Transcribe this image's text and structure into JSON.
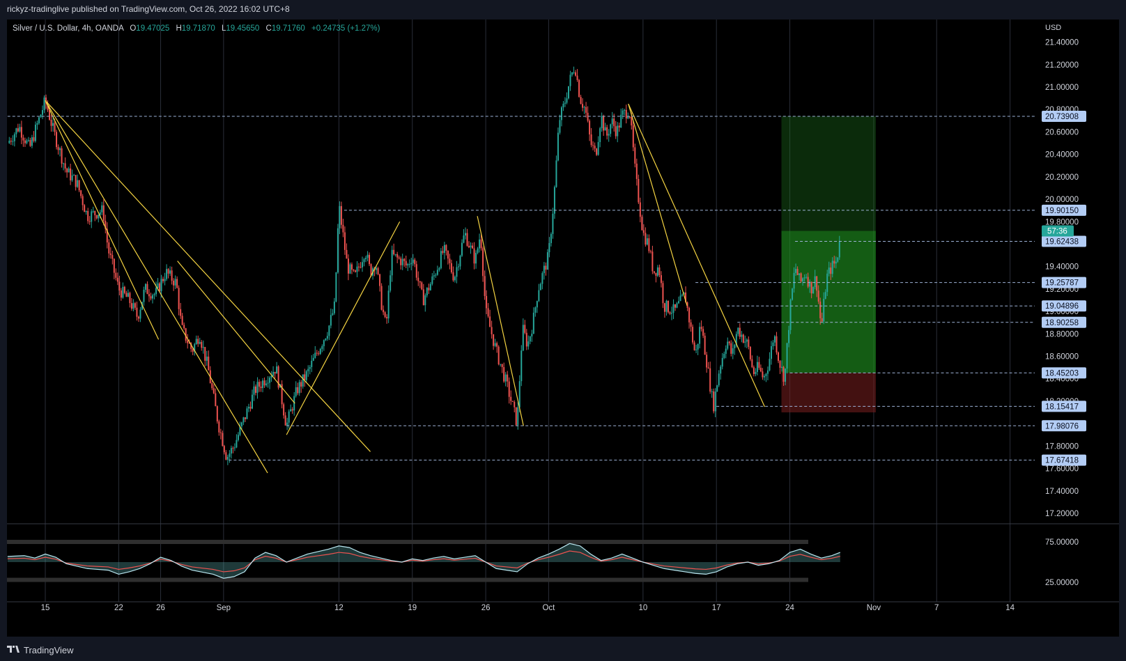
{
  "header": {
    "text": "rickyz-tradinglive published on TradingView.com, Oct 26, 2022 16:02 UTC+8"
  },
  "legend": {
    "symbol": "Silver / U.S. Dollar, 4h, OANDA",
    "o_label": "O",
    "o": "19.47025",
    "h_label": "H",
    "h": "19.71870",
    "l_label": "L",
    "l": "19.45650",
    "c_label": "C",
    "c": "19.71760",
    "change": "+0.24735 (+1.27%)"
  },
  "footer": {
    "logo_text": "TradingView"
  },
  "colors": {
    "background": "#000000",
    "frame": "#131722",
    "up": "#26a69a",
    "down": "#ef5350",
    "trendline": "#f5d442",
    "level": "#9db2d6",
    "label_bg": "#b3cdf5",
    "badge": "#26a69a"
  },
  "chart_data": {
    "type": "candlestick",
    "currency_label": "USD",
    "ylim": [
      17.15,
      21.6
    ],
    "y_ticks": [
      "17.20000",
      "17.40000",
      "17.60000",
      "17.80000",
      "18.00000",
      "18.20000",
      "18.40000",
      "18.60000",
      "18.80000",
      "19.00000",
      "19.20000",
      "19.40000",
      "19.60000",
      "19.80000",
      "20.00000",
      "20.20000",
      "20.40000",
      "20.60000",
      "20.80000",
      "21.00000",
      "21.20000",
      "21.40000"
    ],
    "x_ticks": [
      {
        "label": "15",
        "day": 0
      },
      {
        "label": "22",
        "day": 7
      },
      {
        "label": "26",
        "day": 11
      },
      {
        "label": "Sep",
        "day": 17
      },
      {
        "label": "12",
        "day": 28
      },
      {
        "label": "19",
        "day": 35
      },
      {
        "label": "26",
        "day": 42
      },
      {
        "label": "Oct",
        "day": 48
      },
      {
        "label": "10",
        "day": 57
      },
      {
        "label": "17",
        "day": 64
      },
      {
        "label": "24",
        "day": 71
      },
      {
        "label": "Nov",
        "day": 79
      },
      {
        "label": "7",
        "day": 85
      },
      {
        "label": "14",
        "day": 92
      }
    ],
    "price_path": [
      [
        -3.6,
        20.5
      ],
      [
        -2.5,
        20.65
      ],
      [
        -1.5,
        20.45
      ],
      [
        -1,
        20.6
      ],
      [
        0,
        20.88
      ],
      [
        0.8,
        20.6
      ],
      [
        2,
        20.25
      ],
      [
        3,
        20.15
      ],
      [
        4,
        19.85
      ],
      [
        5.5,
        19.9
      ],
      [
        6,
        19.55
      ],
      [
        7,
        19.2
      ],
      [
        8,
        19.1
      ],
      [
        8.8,
        18.95
      ],
      [
        9.5,
        19.2
      ],
      [
        10.5,
        19.15
      ],
      [
        11.5,
        19.35
      ],
      [
        12.5,
        19.25
      ],
      [
        13,
        18.85
      ],
      [
        14,
        18.65
      ],
      [
        14.7,
        18.8
      ],
      [
        15.5,
        18.5
      ],
      [
        16.5,
        18.0
      ],
      [
        17.3,
        17.7
      ],
      [
        18,
        17.8
      ],
      [
        19,
        18.05
      ],
      [
        20,
        18.3
      ],
      [
        21,
        18.4
      ],
      [
        22,
        18.5
      ],
      [
        23,
        17.98
      ],
      [
        24,
        18.3
      ],
      [
        25,
        18.45
      ],
      [
        26,
        18.65
      ],
      [
        27,
        18.85
      ],
      [
        27.6,
        19.05
      ],
      [
        28,
        19.95
      ],
      [
        28.8,
        19.4
      ],
      [
        29.5,
        19.3
      ],
      [
        30.5,
        19.55
      ],
      [
        31,
        19.35
      ],
      [
        31.5,
        19.45
      ],
      [
        32,
        19.1
      ],
      [
        32.5,
        18.85
      ],
      [
        33,
        19.5
      ],
      [
        34,
        19.45
      ],
      [
        34.5,
        19.4
      ],
      [
        35,
        19.5
      ],
      [
        36,
        19.1
      ],
      [
        37,
        19.3
      ],
      [
        38,
        19.55
      ],
      [
        39,
        19.3
      ],
      [
        40,
        19.7
      ],
      [
        41,
        19.45
      ],
      [
        41.5,
        19.7
      ],
      [
        42,
        19.0
      ],
      [
        43,
        18.65
      ],
      [
        44,
        18.35
      ],
      [
        45,
        18.0
      ],
      [
        45.5,
        18.85
      ],
      [
        46,
        18.7
      ],
      [
        46.5,
        18.9
      ],
      [
        47,
        19.2
      ],
      [
        48,
        19.5
      ],
      [
        48.5,
        20.0
      ],
      [
        49,
        20.7
      ],
      [
        49.5,
        20.85
      ],
      [
        50,
        21.05
      ],
      [
        50.5,
        21.2
      ],
      [
        51,
        20.9
      ],
      [
        51.5,
        20.8
      ],
      [
        52,
        20.5
      ],
      [
        52.5,
        20.4
      ],
      [
        53,
        20.75
      ],
      [
        53.5,
        20.55
      ],
      [
        54,
        20.7
      ],
      [
        54.5,
        20.6
      ],
      [
        55,
        20.75
      ],
      [
        55.7,
        20.8
      ],
      [
        56.3,
        20.2
      ],
      [
        57,
        19.7
      ],
      [
        57.5,
        19.6
      ],
      [
        58,
        19.35
      ],
      [
        58.5,
        19.4
      ],
      [
        59,
        19.05
      ],
      [
        60,
        19.0
      ],
      [
        61,
        19.15
      ],
      [
        62,
        18.6
      ],
      [
        62.5,
        18.9
      ],
      [
        63,
        18.6
      ],
      [
        63.7,
        18.15
      ],
      [
        64.3,
        18.5
      ],
      [
        65,
        18.75
      ],
      [
        65.5,
        18.6
      ],
      [
        66,
        18.85
      ],
      [
        67,
        18.7
      ],
      [
        67.5,
        18.45
      ],
      [
        68,
        18.5
      ],
      [
        68.5,
        18.4
      ],
      [
        69,
        18.55
      ],
      [
        69.5,
        18.8
      ],
      [
        70,
        18.55
      ],
      [
        70.5,
        18.4
      ],
      [
        71,
        19.0
      ],
      [
        71.5,
        19.4
      ],
      [
        72,
        19.25
      ],
      [
        72.5,
        19.35
      ],
      [
        73,
        19.2
      ],
      [
        73.5,
        19.3
      ],
      [
        74,
        18.85
      ],
      [
        74.5,
        19.3
      ],
      [
        75,
        19.4
      ],
      [
        75.5,
        19.45
      ],
      [
        75.8,
        19.72
      ]
    ],
    "levels": [
      {
        "value": 20.73908,
        "label": "20.73908",
        "from_day": -3.6
      },
      {
        "value": 19.9015,
        "label": "19.90150",
        "from_day": 28.5
      },
      {
        "value": 19.62438,
        "label": "19.62438",
        "from_day": 71.5
      },
      {
        "value": 19.25787,
        "label": "19.25787",
        "from_day": 62
      },
      {
        "value": 19.04896,
        "label": "19.04896",
        "from_day": 65
      },
      {
        "value": 18.90258,
        "label": "18.90258",
        "from_day": 66
      },
      {
        "value": 18.45203,
        "label": "18.45203",
        "from_day": 71
      },
      {
        "value": 18.15417,
        "label": "18.15417",
        "from_day": 64
      },
      {
        "value": 17.98076,
        "label": "17.98076",
        "from_day": 23
      },
      {
        "value": 17.67418,
        "label": "17.67418",
        "from_day": 17.5
      }
    ],
    "last_price": {
      "value": 19.7176,
      "countdown": "57:36"
    },
    "position": {
      "from_day": 70.2,
      "to_day": 79.2,
      "entry": 18.45203,
      "target": 20.73908,
      "stop": 18.1
    },
    "trendlines": [
      [
        [
          0,
          20.88
        ],
        [
          10.8,
          18.75
        ]
      ],
      [
        [
          0,
          20.88
        ],
        [
          21.2,
          17.56
        ]
      ],
      [
        [
          0,
          20.88
        ],
        [
          31,
          17.75
        ]
      ],
      [
        [
          12.6,
          19.45
        ],
        [
          23.8,
          18.18
        ]
      ],
      [
        [
          23,
          17.9
        ],
        [
          33.8,
          19.8
        ]
      ],
      [
        [
          41.2,
          19.85
        ],
        [
          45.6,
          17.98
        ]
      ],
      [
        [
          55.6,
          20.85
        ],
        [
          61.2,
          19.05
        ]
      ],
      [
        [
          55.6,
          20.85
        ],
        [
          68.6,
          18.15
        ]
      ]
    ],
    "indicator": {
      "y_ticks": [
        "75.00000",
        "25.00000"
      ],
      "ylim": [
        15,
        85
      ],
      "values": [
        [
          -3.6,
          57
        ],
        [
          -2,
          58
        ],
        [
          -1,
          55
        ],
        [
          0,
          60
        ],
        [
          1,
          56
        ],
        [
          2,
          48
        ],
        [
          3,
          45
        ],
        [
          4,
          42
        ],
        [
          6,
          40
        ],
        [
          7,
          35
        ],
        [
          8,
          38
        ],
        [
          9,
          42
        ],
        [
          10,
          48
        ],
        [
          11,
          56
        ],
        [
          12,
          52
        ],
        [
          13,
          45
        ],
        [
          14,
          40
        ],
        [
          16,
          35
        ],
        [
          17,
          30
        ],
        [
          18,
          32
        ],
        [
          19,
          38
        ],
        [
          20,
          55
        ],
        [
          21,
          62
        ],
        [
          22,
          58
        ],
        [
          23,
          50
        ],
        [
          24,
          55
        ],
        [
          25,
          60
        ],
        [
          26,
          63
        ],
        [
          27,
          66
        ],
        [
          28,
          70
        ],
        [
          29,
          68
        ],
        [
          30,
          62
        ],
        [
          31,
          58
        ],
        [
          32,
          55
        ],
        [
          33,
          52
        ],
        [
          34,
          50
        ],
        [
          35,
          54
        ],
        [
          36,
          52
        ],
        [
          37,
          55
        ],
        [
          38,
          57
        ],
        [
          39,
          54
        ],
        [
          40,
          56
        ],
        [
          41,
          58
        ],
        [
          42,
          50
        ],
        [
          43,
          42
        ],
        [
          44,
          40
        ],
        [
          45,
          38
        ],
        [
          46,
          48
        ],
        [
          47,
          55
        ],
        [
          48,
          60
        ],
        [
          49,
          66
        ],
        [
          50,
          73
        ],
        [
          51,
          70
        ],
        [
          52,
          60
        ],
        [
          53,
          52
        ],
        [
          54,
          55
        ],
        [
          55,
          60
        ],
        [
          56,
          55
        ],
        [
          57,
          50
        ],
        [
          58,
          46
        ],
        [
          59,
          42
        ],
        [
          60,
          40
        ],
        [
          61,
          38
        ],
        [
          62,
          36
        ],
        [
          63,
          35
        ],
        [
          64,
          38
        ],
        [
          65,
          44
        ],
        [
          66,
          48
        ],
        [
          67,
          50
        ],
        [
          68,
          46
        ],
        [
          69,
          48
        ],
        [
          70,
          52
        ],
        [
          71,
          62
        ],
        [
          72,
          66
        ],
        [
          73,
          60
        ],
        [
          74,
          55
        ],
        [
          75,
          58
        ],
        [
          75.8,
          62
        ]
      ]
    }
  }
}
